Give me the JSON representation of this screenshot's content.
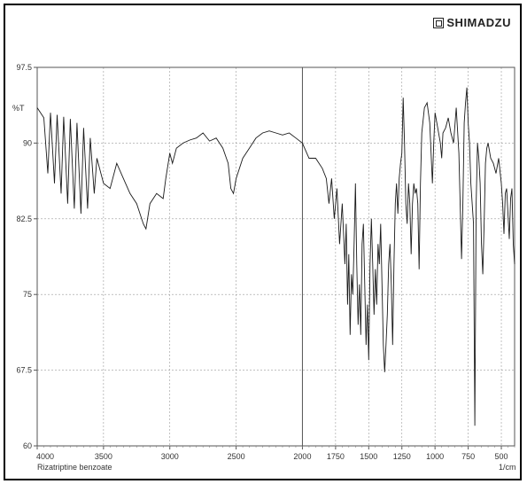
{
  "logo": {
    "text": "SHIMADZU"
  },
  "chart_data": {
    "type": "line",
    "title": "",
    "xlabel": "",
    "ylabel": "%T",
    "x_unit": "1/cm",
    "sample_label": "Rizatriptine benzoate",
    "xlim": [
      4000,
      400
    ],
    "ylim": [
      60,
      97.5
    ],
    "x_reversed": true,
    "grid": true,
    "x_ticks": [
      4000,
      3500,
      3000,
      2500,
      2000,
      1750,
      1500,
      1250,
      1000,
      750,
      500
    ],
    "x_tick_labels": [
      "4000",
      "3500",
      "3000",
      "2500",
      "2000",
      "1750",
      "1500",
      "1250",
      "1000",
      "750",
      "500"
    ],
    "y_ticks": [
      60,
      67.5,
      75,
      82.5,
      90,
      97.5
    ],
    "y_tick_labels": [
      "60",
      "67.5",
      "75",
      "82.5",
      "90",
      "97.5"
    ],
    "series": [
      {
        "color": "#1a1a1a",
        "points": [
          [
            4000,
            93.5
          ],
          [
            3950,
            92.5
          ],
          [
            3920,
            87.0
          ],
          [
            3900,
            93.0
          ],
          [
            3870,
            86.0
          ],
          [
            3850,
            92.8
          ],
          [
            3820,
            85.0
          ],
          [
            3800,
            92.6
          ],
          [
            3770,
            84.0
          ],
          [
            3750,
            92.4
          ],
          [
            3720,
            83.5
          ],
          [
            3700,
            92.0
          ],
          [
            3670,
            83.0
          ],
          [
            3650,
            91.5
          ],
          [
            3620,
            83.5
          ],
          [
            3600,
            90.5
          ],
          [
            3570,
            85.0
          ],
          [
            3550,
            88.5
          ],
          [
            3500,
            86.0
          ],
          [
            3450,
            85.5
          ],
          [
            3400,
            88.0
          ],
          [
            3350,
            86.5
          ],
          [
            3300,
            85.0
          ],
          [
            3250,
            84.0
          ],
          [
            3200,
            82.0
          ],
          [
            3180,
            81.5
          ],
          [
            3150,
            84.0
          ],
          [
            3100,
            85.0
          ],
          [
            3050,
            84.5
          ],
          [
            3030,
            86.5
          ],
          [
            3000,
            89.0
          ],
          [
            2980,
            88.0
          ],
          [
            2950,
            89.5
          ],
          [
            2900,
            90.0
          ],
          [
            2850,
            90.3
          ],
          [
            2800,
            90.5
          ],
          [
            2750,
            91.0
          ],
          [
            2700,
            90.2
          ],
          [
            2650,
            90.5
          ],
          [
            2600,
            89.5
          ],
          [
            2560,
            88.0
          ],
          [
            2540,
            85.5
          ],
          [
            2520,
            85.0
          ],
          [
            2500,
            86.5
          ],
          [
            2450,
            88.5
          ],
          [
            2400,
            89.5
          ],
          [
            2350,
            90.5
          ],
          [
            2300,
            91.0
          ],
          [
            2250,
            91.2
          ],
          [
            2200,
            91.0
          ],
          [
            2150,
            90.8
          ],
          [
            2100,
            91.0
          ],
          [
            2050,
            90.5
          ],
          [
            2000,
            90.0
          ],
          [
            1950,
            88.5
          ],
          [
            1900,
            88.5
          ],
          [
            1850,
            87.5
          ],
          [
            1820,
            86.5
          ],
          [
            1800,
            84.0
          ],
          [
            1780,
            86.5
          ],
          [
            1760,
            82.5
          ],
          [
            1740,
            85.5
          ],
          [
            1720,
            80.0
          ],
          [
            1700,
            84.0
          ],
          [
            1680,
            78.0
          ],
          [
            1670,
            82.0
          ],
          [
            1660,
            74.0
          ],
          [
            1650,
            79.0
          ],
          [
            1640,
            71.0
          ],
          [
            1630,
            77.0
          ],
          [
            1620,
            75.0
          ],
          [
            1610,
            80.0
          ],
          [
            1600,
            86.0
          ],
          [
            1590,
            78.0
          ],
          [
            1580,
            72.0
          ],
          [
            1570,
            76.0
          ],
          [
            1560,
            71.0
          ],
          [
            1550,
            80.0
          ],
          [
            1540,
            82.0
          ],
          [
            1530,
            76.0
          ],
          [
            1520,
            70.0
          ],
          [
            1510,
            74.0
          ],
          [
            1500,
            68.5
          ],
          [
            1490,
            78.0
          ],
          [
            1480,
            82.5
          ],
          [
            1470,
            78.0
          ],
          [
            1460,
            73.0
          ],
          [
            1450,
            77.5
          ],
          [
            1440,
            74.0
          ],
          [
            1430,
            80.0
          ],
          [
            1420,
            78.0
          ],
          [
            1410,
            82.0
          ],
          [
            1400,
            76.0
          ],
          [
            1390,
            70.0
          ],
          [
            1380,
            67.3
          ],
          [
            1370,
            70.0
          ],
          [
            1360,
            73.0
          ],
          [
            1350,
            78.0
          ],
          [
            1340,
            80.0
          ],
          [
            1330,
            76.0
          ],
          [
            1320,
            70.0
          ],
          [
            1310,
            78.0
          ],
          [
            1300,
            84.0
          ],
          [
            1290,
            86.0
          ],
          [
            1280,
            83.0
          ],
          [
            1270,
            86.5
          ],
          [
            1260,
            88.0
          ],
          [
            1250,
            89.0
          ],
          [
            1240,
            94.5
          ],
          [
            1230,
            90.0
          ],
          [
            1220,
            84.0
          ],
          [
            1210,
            82.0
          ],
          [
            1200,
            86.0
          ],
          [
            1190,
            84.0
          ],
          [
            1180,
            79.0
          ],
          [
            1170,
            84.0
          ],
          [
            1160,
            86.0
          ],
          [
            1150,
            85.0
          ],
          [
            1140,
            85.5
          ],
          [
            1130,
            84.0
          ],
          [
            1120,
            77.5
          ],
          [
            1110,
            86.0
          ],
          [
            1100,
            91.0
          ],
          [
            1080,
            93.5
          ],
          [
            1060,
            94.0
          ],
          [
            1040,
            92.0
          ],
          [
            1030,
            89.0
          ],
          [
            1020,
            86.0
          ],
          [
            1010,
            90.0
          ],
          [
            1000,
            93.0
          ],
          [
            980,
            91.5
          ],
          [
            960,
            90.0
          ],
          [
            950,
            88.5
          ],
          [
            940,
            91.0
          ],
          [
            920,
            91.5
          ],
          [
            900,
            92.5
          ],
          [
            880,
            91.0
          ],
          [
            860,
            90.0
          ],
          [
            840,
            93.5
          ],
          [
            820,
            89.0
          ],
          [
            800,
            78.5
          ],
          [
            790,
            84.0
          ],
          [
            780,
            92.0
          ],
          [
            770,
            94.0
          ],
          [
            760,
            95.5
          ],
          [
            750,
            92.0
          ],
          [
            740,
            90.0
          ],
          [
            730,
            86.0
          ],
          [
            720,
            84.0
          ],
          [
            710,
            82.0
          ],
          [
            700,
            62.0
          ],
          [
            690,
            84.0
          ],
          [
            680,
            90.0
          ],
          [
            670,
            88.5
          ],
          [
            660,
            86.0
          ],
          [
            650,
            80.0
          ],
          [
            640,
            77.0
          ],
          [
            630,
            82.0
          ],
          [
            620,
            88.0
          ],
          [
            610,
            89.5
          ],
          [
            600,
            90.0
          ],
          [
            580,
            88.5
          ],
          [
            560,
            88.0
          ],
          [
            540,
            87.0
          ],
          [
            520,
            88.5
          ],
          [
            500,
            86.0
          ],
          [
            490,
            84.0
          ],
          [
            480,
            81.0
          ],
          [
            470,
            85.0
          ],
          [
            460,
            85.5
          ],
          [
            450,
            83.0
          ],
          [
            440,
            80.5
          ],
          [
            430,
            84.5
          ],
          [
            420,
            85.5
          ],
          [
            410,
            80.0
          ],
          [
            400,
            78.0
          ]
        ]
      }
    ]
  }
}
